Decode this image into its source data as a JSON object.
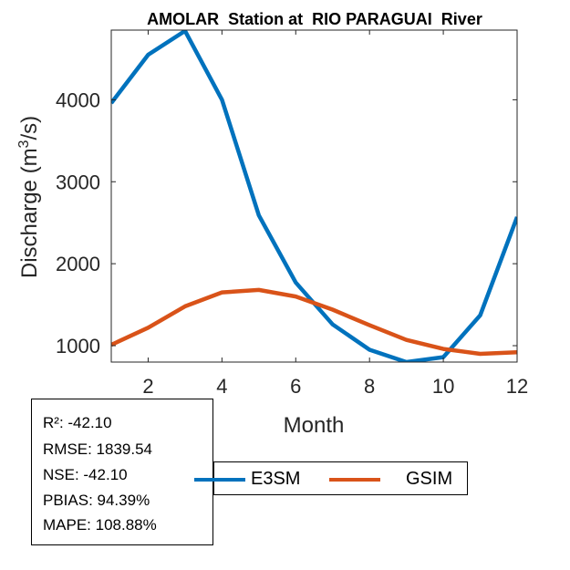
{
  "chart_data": {
    "type": "line",
    "title": "AMOLAR  Station at  RIO PARAGUAI  River",
    "xlabel": "Month",
    "ylabel": "Discharge (m³/s)",
    "ylabel_base": "Discharge (m",
    "ylabel_sup": "3",
    "ylabel_tail": "/s)",
    "xlim": [
      1,
      12
    ],
    "ylim": [
      800,
      4850
    ],
    "xticks": [
      2,
      4,
      6,
      8,
      10,
      12
    ],
    "yticks": [
      1000,
      2000,
      3000,
      4000
    ],
    "grid": false,
    "legend_position": "bottom",
    "x": [
      1,
      2,
      3,
      4,
      5,
      6,
      7,
      8,
      9,
      10,
      11,
      12
    ],
    "series": [
      {
        "name": "E3SM",
        "color": "#0072BD",
        "values": [
          3960,
          4550,
          4840,
          4000,
          2590,
          1770,
          1260,
          950,
          800,
          860,
          1370,
          2570
        ]
      },
      {
        "name": "GSIM",
        "color": "#D95319",
        "values": [
          1010,
          1220,
          1480,
          1650,
          1680,
          1600,
          1440,
          1250,
          1070,
          960,
          900,
          920
        ]
      }
    ]
  },
  "stats": [
    "R²: -42.10",
    "RMSE: 1839.54",
    "NSE: -42.10",
    "PBIAS: 94.39%",
    "MAPE: 108.88%"
  ]
}
